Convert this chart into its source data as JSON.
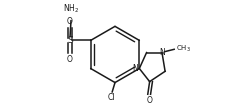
{
  "background_color": "#ffffff",
  "line_color": "#1a1a1a",
  "line_width": 1.1,
  "font_size": 6.0,
  "figsize": [
    2.3,
    1.06
  ],
  "dpi": 100,
  "xlim": [
    -0.95,
    0.95
  ],
  "ylim": [
    -0.52,
    0.52
  ]
}
